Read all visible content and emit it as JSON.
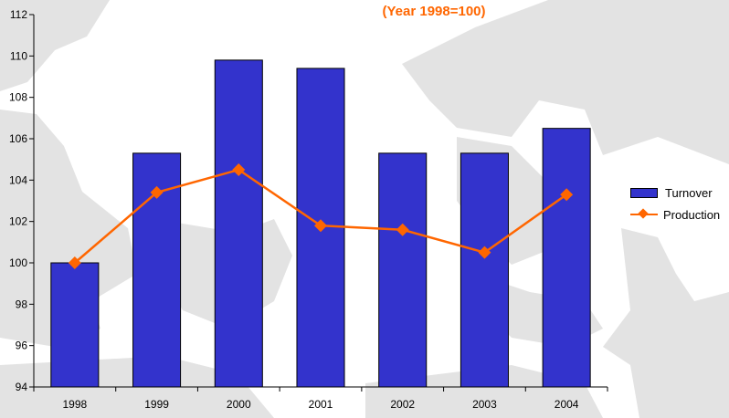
{
  "chart_data": {
    "type": "bar",
    "subtitle": "(Year 1998=100)",
    "categories": [
      "1998",
      "1999",
      "2000",
      "2001",
      "2002",
      "2003",
      "2004"
    ],
    "series": [
      {
        "name": "Turnover",
        "kind": "bar",
        "color": "#3333cc",
        "values": [
          100,
          105.3,
          109.8,
          109.4,
          105.3,
          105.3,
          106.5
        ]
      },
      {
        "name": "Production",
        "kind": "line",
        "color": "#ff6600",
        "values": [
          100,
          103.4,
          104.5,
          101.8,
          101.6,
          100.5,
          103.3
        ]
      }
    ],
    "ylim": [
      94,
      112
    ],
    "yticks": [
      94,
      96,
      98,
      100,
      102,
      104,
      106,
      108,
      110,
      112
    ],
    "legend_position": "right",
    "grid": false
  }
}
